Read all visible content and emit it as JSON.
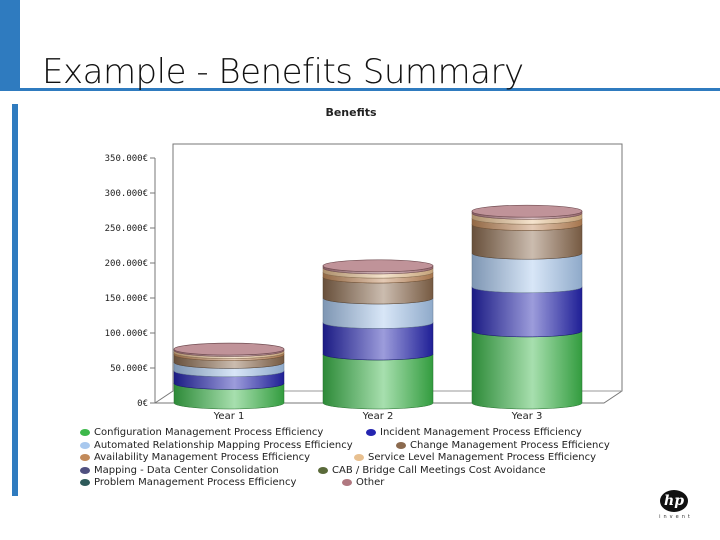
{
  "slide": {
    "title": "Example  - Benefits Summary"
  },
  "logo": {
    "mark": "hp",
    "text": "invent"
  },
  "colors": {
    "accent": "#2f7bbf"
  },
  "chart_data": {
    "type": "bar",
    "stacked": true,
    "three_d": "cylinder",
    "title": "Benefits",
    "xlabel": "",
    "ylabel": "",
    "ylim": [
      0,
      350000
    ],
    "yticks": [
      "0€",
      "50.000€",
      "100.000€",
      "150.000€",
      "200.000€",
      "250.000€",
      "300.000€",
      "350.000€"
    ],
    "grid": false,
    "legend_position": "bottom",
    "categories": [
      "Year 1",
      "Year 2",
      "Year 3"
    ],
    "series": [
      {
        "name": "Configuration Management Process Efficiency",
        "color": "#3cb84a",
        "values": [
          28000,
          70000,
          103000
        ]
      },
      {
        "name": "Incident Management Process Efficiency",
        "color": "#2424b0",
        "values": [
          18000,
          45000,
          63000
        ]
      },
      {
        "name": "Automated Relationship Mapping Process Efficiency",
        "color": "#a8c8ee",
        "values": [
          12000,
          35000,
          48000
        ]
      },
      {
        "name": "Change Management Process Efficiency",
        "color": "#8b6a4e",
        "values": [
          11000,
          30000,
          41000
        ]
      },
      {
        "name": "Availability Management Process Efficiency",
        "color": "#c28a5a",
        "values": [
          3000,
          7000,
          9000
        ]
      },
      {
        "name": "Service Level Management Process Efficiency",
        "color": "#e8c090",
        "values": [
          3000,
          6000,
          7000
        ]
      },
      {
        "name": "Mapping - Data Center Consolidation",
        "color": "#505080",
        "values": [
          0,
          0,
          0
        ]
      },
      {
        "name": "CAB / Bridge Call Meetings Cost Avoidance",
        "color": "#5a6a3a",
        "values": [
          0,
          0,
          0
        ]
      },
      {
        "name": "Problem  Management Process Efficiency",
        "color": "#2e5a5a",
        "values": [
          0,
          0,
          0
        ]
      },
      {
        "name": "Other",
        "color": "#b07880",
        "values": [
          2000,
          3000,
          3000
        ]
      }
    ]
  }
}
